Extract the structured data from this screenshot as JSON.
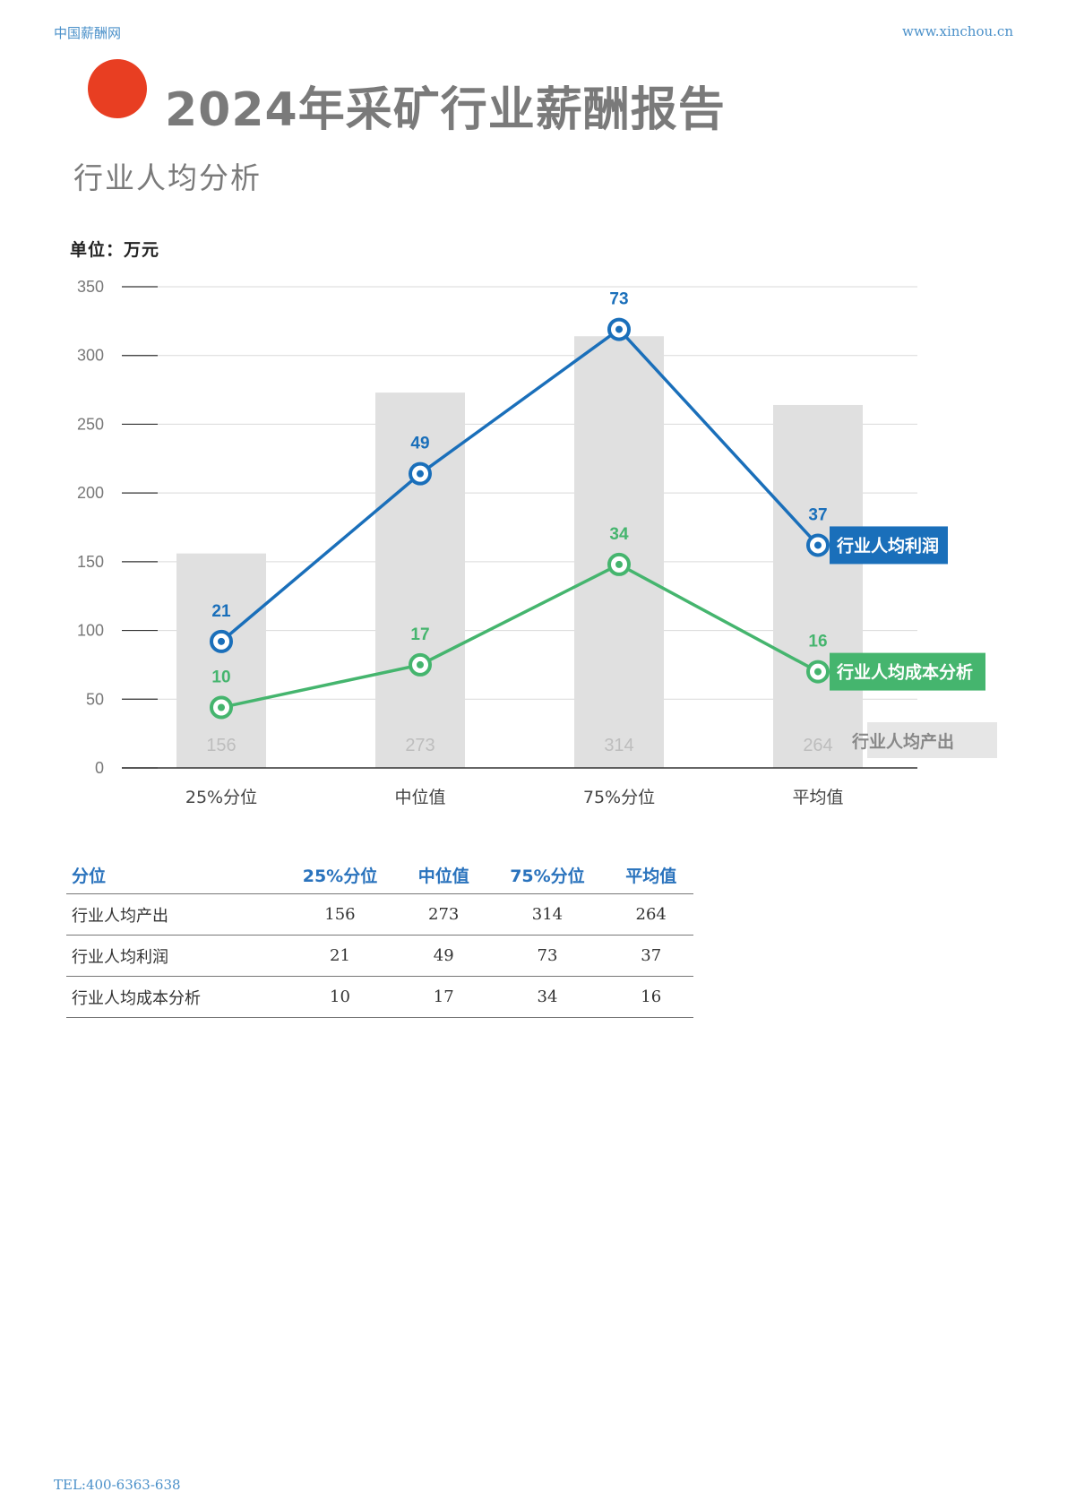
{
  "header": {
    "site_name": "中国薪酬网",
    "site_url": "www.xinchou.cn",
    "title": "2024年采矿行业薪酬报告",
    "subtitle": "行业人均分析"
  },
  "unit_label": "单位：万元",
  "colors": {
    "accent_dot": "#e83e22",
    "profit_line": "#1a6fba",
    "cost_line": "#45b56e",
    "bar": "#e0e0e0"
  },
  "chart_data": {
    "type": "bar",
    "categories": [
      "25%分位",
      "中位值",
      "75%分位",
      "平均值"
    ],
    "ylim": [
      0,
      350
    ],
    "yticks": [
      0,
      50,
      100,
      150,
      200,
      250,
      300,
      350
    ],
    "series": [
      {
        "name": "行业人均产出",
        "type": "bar",
        "values": [
          156,
          273,
          314,
          264
        ]
      },
      {
        "name": "行业人均利润",
        "type": "line",
        "values": [
          21,
          49,
          73,
          37
        ],
        "plot_values": [
          92,
          214,
          319,
          162
        ]
      },
      {
        "name": "行业人均成本分析",
        "type": "line",
        "values": [
          10,
          17,
          34,
          16
        ],
        "plot_values": [
          44,
          75,
          148,
          70
        ]
      }
    ],
    "grid": true
  },
  "table": {
    "headers": [
      "分位",
      "25%分位",
      "中位值",
      "75%分位",
      "平均值"
    ],
    "rows": [
      {
        "label": "行业人均产出",
        "values": [
          "156",
          "273",
          "314",
          "264"
        ]
      },
      {
        "label": "行业人均利润",
        "values": [
          "21",
          "49",
          "73",
          "37"
        ]
      },
      {
        "label": "行业人均成本分析",
        "values": [
          "10",
          "17",
          "34",
          "16"
        ]
      }
    ]
  },
  "footer": {
    "tel": "TEL:400-6363-638"
  }
}
